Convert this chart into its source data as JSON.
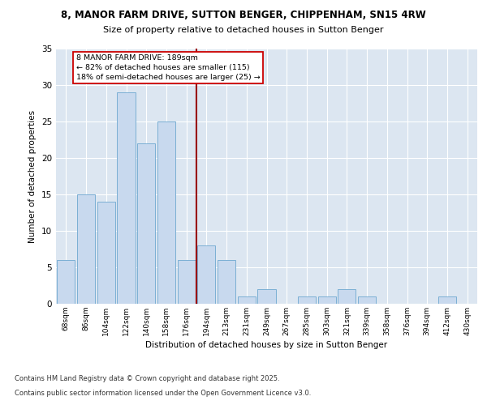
{
  "title1": "8, MANOR FARM DRIVE, SUTTON BENGER, CHIPPENHAM, SN15 4RW",
  "title2": "Size of property relative to detached houses in Sutton Benger",
  "xlabel": "Distribution of detached houses by size in Sutton Benger",
  "ylabel": "Number of detached properties",
  "categories": [
    "68sqm",
    "86sqm",
    "104sqm",
    "122sqm",
    "140sqm",
    "158sqm",
    "176sqm",
    "194sqm",
    "213sqm",
    "231sqm",
    "249sqm",
    "267sqm",
    "285sqm",
    "303sqm",
    "321sqm",
    "339sqm",
    "358sqm",
    "376sqm",
    "394sqm",
    "412sqm",
    "430sqm"
  ],
  "values": [
    6,
    15,
    14,
    29,
    22,
    25,
    6,
    8,
    6,
    1,
    2,
    0,
    1,
    1,
    2,
    1,
    0,
    0,
    0,
    1,
    0
  ],
  "bar_color": "#c8d9ee",
  "bar_edge_color": "#7bafd4",
  "vline_x": 6.5,
  "vline_color": "#990000",
  "annotation_text": "8 MANOR FARM DRIVE: 189sqm\n← 82% of detached houses are smaller (115)\n18% of semi-detached houses are larger (25) →",
  "annotation_box_color": "#ffffff",
  "annotation_box_edge_color": "#cc0000",
  "ylim": [
    0,
    35
  ],
  "yticks": [
    0,
    5,
    10,
    15,
    20,
    25,
    30,
    35
  ],
  "background_color": "#dce6f1",
  "footer1": "Contains HM Land Registry data © Crown copyright and database right 2025.",
  "footer2": "Contains public sector information licensed under the Open Government Licence v3.0."
}
